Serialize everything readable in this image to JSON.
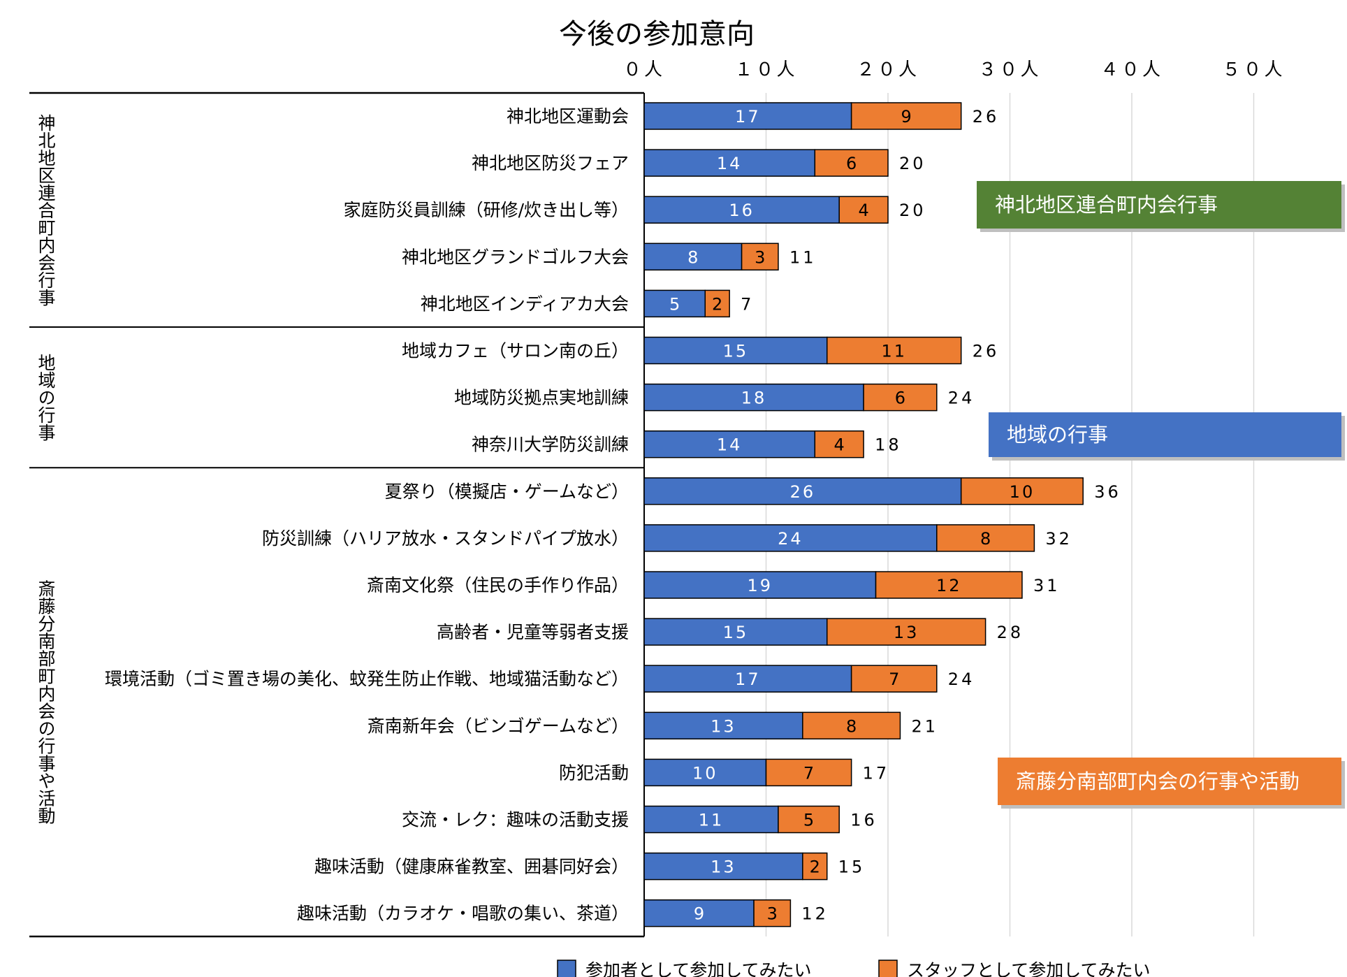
{
  "chart_data": {
    "type": "bar",
    "orientation": "horizontal",
    "stacked": true,
    "title": "今後の参加意向",
    "x_ticks": [
      "０人",
      "１０人",
      "２０人",
      "３０人",
      "４０人",
      "５０人"
    ],
    "xlim": [
      0,
      50
    ],
    "grid": true,
    "legend_position": "bottom",
    "categories": [
      "神北地区運動会",
      "神北地区防災フェア",
      "家庭防災員訓練（研修/炊き出し等）",
      "神北地区グランドゴルフ大会",
      "神北地区インディアカ大会",
      "地域カフェ（サロン南の丘）",
      "地域防災拠点実地訓練",
      "神奈川大学防災訓練",
      "夏祭り（模擬店・ゲームなど）",
      "防災訓練（ハリア放水・スタンドパイプ放水）",
      "斎南文化祭（住民の手作り作品）",
      "高齢者・児童等弱者支援",
      "環境活動（ゴミ置き場の美化、蚊発生防止作戦、地域猫活動など）",
      "斎南新年会（ビンゴゲームなど）",
      "防犯活動",
      "交流・レク：趣味の活動支援",
      "趣味活動（健康麻雀教室、囲碁同好会）",
      "趣味活動（カラオケ・唱歌の集い、茶道）"
    ],
    "series": [
      {
        "name": "参加者として参加してみたい",
        "color": "#4472c4",
        "values": [
          17,
          14,
          16,
          8,
          5,
          15,
          18,
          14,
          26,
          24,
          19,
          15,
          17,
          13,
          10,
          11,
          13,
          9
        ]
      },
      {
        "name": "スタッフとして参加してみたい",
        "color": "#ed7d31",
        "values": [
          9,
          6,
          4,
          3,
          2,
          11,
          6,
          4,
          10,
          8,
          12,
          13,
          7,
          8,
          7,
          5,
          2,
          3
        ]
      }
    ],
    "totals": [
      26,
      20,
      20,
      11,
      7,
      26,
      24,
      18,
      36,
      32,
      31,
      28,
      24,
      21,
      17,
      16,
      15,
      12
    ],
    "groups": [
      {
        "label": "神北地区連合町内会行事",
        "start": 0,
        "end": 4,
        "callout": "神北地区連合町内会行事",
        "callout_color": "#548235"
      },
      {
        "label": "地域の行事",
        "start": 5,
        "end": 7,
        "callout": "地域の行事",
        "callout_color": "#4472c4"
      },
      {
        "label": "斎藤分南部町内会の行事や活動",
        "start": 8,
        "end": 17,
        "callout": "斎藤分南部町内会の行事や活動",
        "callout_color": "#ed7d31"
      }
    ]
  }
}
